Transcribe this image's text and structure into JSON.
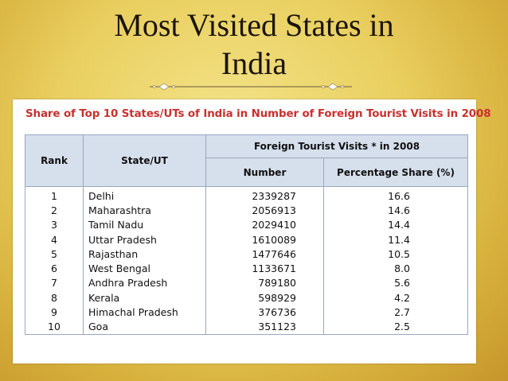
{
  "slide": {
    "title_line1": "Most Visited States in",
    "title_line2": "India"
  },
  "table": {
    "title": "Share of Top 10 States/UTs of India in Number of  Foreign Tourist Visits in 2008",
    "headers": {
      "rank": "Rank",
      "state": "State/UT",
      "group": "Foreign Tourist Visits * in 2008",
      "number": "Number",
      "share": "Percentage Share (%)"
    },
    "rows": [
      {
        "rank": "1",
        "state": "Delhi",
        "number": "2339287",
        "share": "16.6"
      },
      {
        "rank": "2",
        "state": "Maharashtra",
        "number": "2056913",
        "share": "14.6"
      },
      {
        "rank": "3",
        "state": "Tamil Nadu",
        "number": "2029410",
        "share": "14.4"
      },
      {
        "rank": "4",
        "state": "Uttar Pradesh",
        "number": "1610089",
        "share": "11.4"
      },
      {
        "rank": "5",
        "state": "Rajasthan",
        "number": "1477646",
        "share": "10.5"
      },
      {
        "rank": "6",
        "state": "West Bengal",
        "number": "1133671",
        "share": "8.0"
      },
      {
        "rank": "7",
        "state": "Andhra Pradesh",
        "number": "789180",
        "share": "5.6"
      },
      {
        "rank": "8",
        "state": "Kerala",
        "number": "598929",
        "share": "4.2"
      },
      {
        "rank": "9",
        "state": "Himachal Pradesh",
        "number": "376736",
        "share": "2.7"
      },
      {
        "rank": "10",
        "state": "Goa",
        "number": "351123",
        "share": "2.5"
      }
    ]
  },
  "colors": {
    "title_red": "#c8312f",
    "header_blue": "#d6dfec",
    "background_gold": "#e9cf5f"
  }
}
